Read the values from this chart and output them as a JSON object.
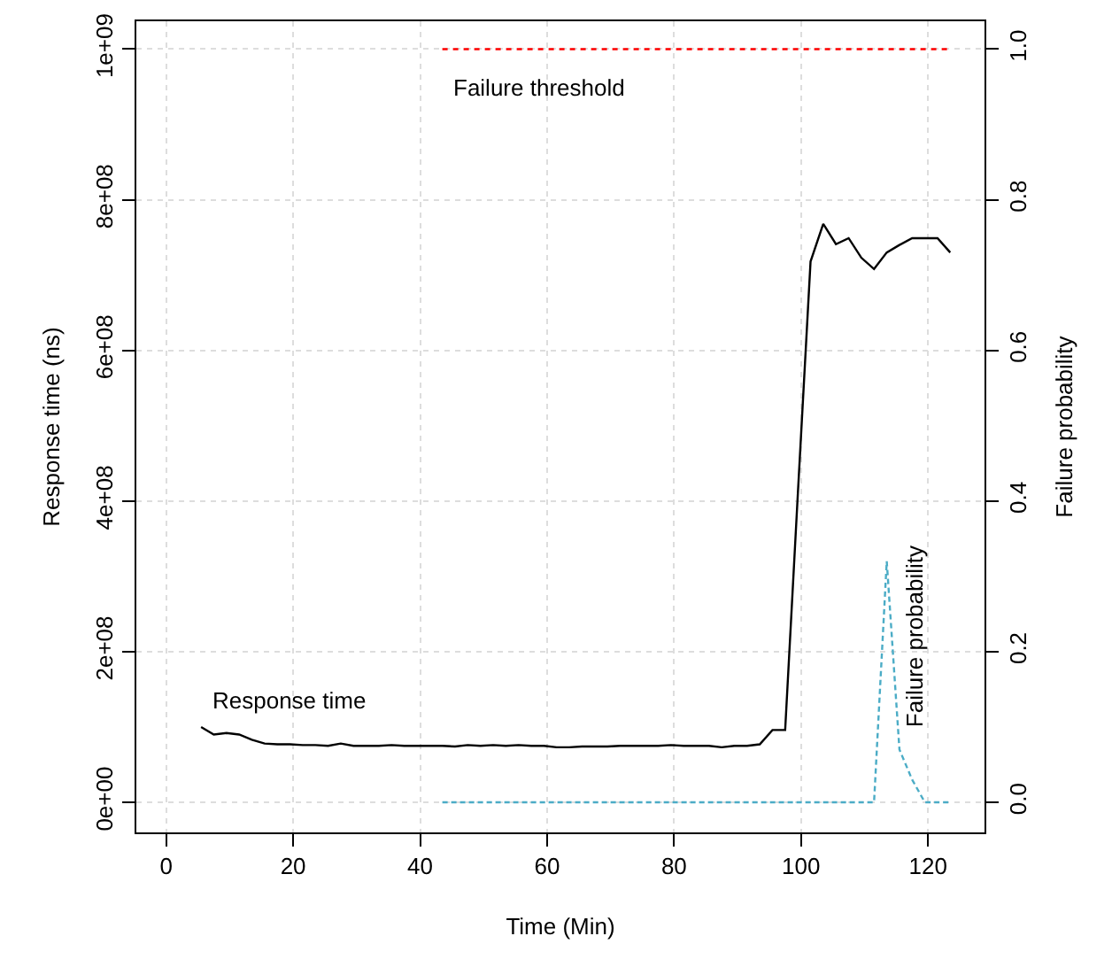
{
  "chart_data": {
    "type": "line",
    "xlabel": "Time (Min)",
    "ylabel": "Response time (ns)",
    "y2label": "Failure probability",
    "xlim": [
      -4.7,
      128.9
    ],
    "xticks": [
      0,
      20,
      40,
      60,
      80,
      100,
      120
    ],
    "ylim": [
      -40000000,
      1037000000
    ],
    "yticks": [
      {
        "value": 0,
        "label": "0e+00"
      },
      {
        "value": 200000000,
        "label": "2e+08"
      },
      {
        "value": 400000000,
        "label": "4e+08"
      },
      {
        "value": 600000000,
        "label": "6e+08"
      },
      {
        "value": 800000000,
        "label": "8e+08"
      },
      {
        "value": 1000000000,
        "label": "1e+09"
      }
    ],
    "y2lim": [
      -0.04,
      1.037
    ],
    "y2ticks": [
      {
        "value": 0,
        "label": "0.0"
      },
      {
        "value": 0.2,
        "label": "0.2"
      },
      {
        "value": 0.4,
        "label": "0.4"
      },
      {
        "value": 0.6,
        "label": "0.6"
      },
      {
        "value": 0.8,
        "label": "0.8"
      },
      {
        "value": 1.0,
        "label": "1.0"
      }
    ],
    "grid": true,
    "legend": false,
    "marker": "none",
    "series": [
      {
        "name": "Response time",
        "color": "#000000",
        "line_style": "solid",
        "x": [
          5.5,
          7.5,
          9.5,
          11.5,
          13.5,
          15.5,
          17.5,
          19.5,
          21.5,
          23.5,
          25.5,
          27.5,
          29.5,
          31.5,
          33.5,
          35.5,
          37.5,
          39.5,
          41.5,
          43.5,
          45.5,
          47.5,
          49.5,
          51.5,
          53.5,
          55.5,
          57.5,
          59.5,
          61.5,
          63.5,
          65.5,
          67.5,
          69.5,
          71.5,
          73.5,
          75.5,
          77.5,
          79.5,
          81.5,
          83.5,
          85.5,
          87.5,
          89.5,
          91.5,
          93.5,
          95.5,
          97.5,
          99.5,
          101.5,
          103.5,
          105.5,
          107.5,
          109.5,
          111.5,
          113.5,
          115.5,
          117.5,
          119.5,
          121.5,
          123.5
        ],
        "values": [
          100000000,
          90000000,
          92000000,
          90000000,
          83000000,
          78000000,
          77000000,
          77000000,
          76000000,
          76000000,
          75000000,
          78000000,
          75000000,
          75000000,
          75000000,
          76000000,
          75000000,
          75000000,
          75000000,
          75000000,
          74000000,
          76000000,
          75000000,
          76000000,
          75000000,
          76000000,
          75000000,
          75000000,
          73000000,
          73000000,
          74000000,
          74000000,
          74000000,
          75000000,
          75000000,
          75000000,
          75000000,
          76000000,
          75000000,
          75000000,
          75000000,
          73000000,
          75000000,
          75000000,
          77000000,
          96000000,
          96000000,
          410000000,
          718000000,
          768000000,
          741000000,
          749000000,
          723000000,
          708000000,
          730000000,
          740000000,
          749000000,
          749000000,
          749000000,
          730000000
        ]
      },
      {
        "name": "Failure probability",
        "color": "#4bacc6",
        "line_style": "dashed",
        "axis": "y2",
        "x": [
          43.5,
          47.5,
          51.5,
          55.5,
          59.5,
          63.5,
          67.5,
          71.5,
          75.5,
          79.5,
          83.5,
          87.5,
          91.5,
          95.5,
          99.5,
          103.5,
          107.5,
          111.5,
          113.5,
          115.5,
          117.5,
          119.5,
          121.5,
          123.5
        ],
        "values": [
          0,
          0,
          0,
          0,
          0,
          0,
          0,
          0,
          0,
          0,
          0,
          0,
          0,
          0,
          0,
          0,
          0,
          0,
          0.32,
          0.07,
          0.03,
          0,
          0,
          0
        ]
      },
      {
        "name": "Failure threshold",
        "color": "#ff0000",
        "line_style": "dotted",
        "x": [
          43.5,
          123.5
        ],
        "values": [
          1000000000,
          1000000000
        ]
      }
    ]
  }
}
